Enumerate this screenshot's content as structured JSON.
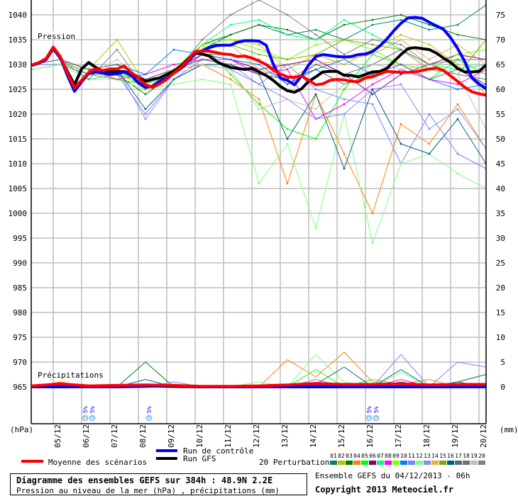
{
  "chart_data": {
    "type": "line",
    "title": "Diagramme des ensembles GEFS sur 384h : 48.9N 2.2E",
    "subtitle": "Pression au niveau de la mer (hPa) , précipitations (mm)",
    "run_info": "Ensemble GEFS du 04/12/2013 - 06h",
    "copyright": "Copyright 2013 Meteociel.fr",
    "left_axis": {
      "unit_label": "(hPa)",
      "range": [
        965,
        1040
      ],
      "ticks": [
        "1040",
        "1035",
        "1030",
        "1025",
        "1020",
        "1015",
        "1010",
        "1005",
        "1000",
        "995",
        "990",
        "985",
        "980",
        "975",
        "970",
        "965"
      ]
    },
    "right_axis": {
      "unit_label": "(mm)",
      "range": [
        0,
        75
      ],
      "ticks": [
        "75",
        "70",
        "65",
        "60",
        "55",
        "50",
        "45",
        "40",
        "35",
        "30",
        "25",
        "20",
        "15",
        "10",
        "5",
        "0"
      ]
    },
    "x_ticks": [
      "05/12",
      "06/12",
      "07/12",
      "08/12",
      "09/12",
      "10/12",
      "11/12",
      "12/12",
      "13/12",
      "14/12",
      "15/12",
      "16/12",
      "17/12",
      "18/12",
      "19/12",
      "20/12"
    ],
    "x_start": "2013-12-04T06:00",
    "grid": true,
    "panel_labels": {
      "pressure": "Pression",
      "precip": "Précipitations"
    },
    "legend": {
      "mean": "Moyenne des scénarios",
      "control": "Run de contrôle",
      "gfs": "Run GFS",
      "perturbations": "20 Perturbations"
    },
    "main_series": [
      {
        "key": "gfs",
        "name": "Run GFS",
        "color": "#000000",
        "step_hours": 6,
        "pressure": [
          1029.8,
          1030.3,
          1031,
          1033.2,
          1031.3,
          1028.6,
          1025.9,
          1029.1,
          1030.4,
          1029.4,
          1028.6,
          1028.6,
          1028.5,
          1028.6,
          1028,
          1027.3,
          1026.6,
          1027,
          1027.3,
          1028,
          1028.6,
          1029.7,
          1031.1,
          1032.3,
          1032.1,
          1031.7,
          1030.6,
          1029.9,
          1029.4,
          1029.2,
          1029,
          1029.2,
          1028.5,
          1027.8,
          1026.8,
          1025.6,
          1024.7,
          1024.4,
          1025.1,
          1026.6,
          1027.5,
          1028.5,
          1028.6,
          1028.6,
          1027.8,
          1027.8,
          1027.5,
          1028,
          1028.5,
          1028.6,
          1029.2,
          1030.6,
          1032,
          1033.2,
          1033.4,
          1033.2,
          1033,
          1032.3,
          1031.3,
          1030.4,
          1029.2,
          1028.5,
          1028.5,
          1028.6,
          1029.9
        ],
        "precip_step_hours": 24,
        "precip": [
          0.1,
          0.3,
          0,
          0.1,
          0.2,
          0.1,
          0,
          0,
          0,
          0,
          0,
          0,
          0,
          0,
          0,
          0,
          0
        ]
      },
      {
        "key": "control",
        "name": "Run de contrôle",
        "color": "#0000ff",
        "step_hours": 6,
        "pressure": [
          1029.8,
          1030.3,
          1031,
          1033.3,
          1031.4,
          1027.8,
          1024.6,
          1026.5,
          1028.2,
          1028.5,
          1028.3,
          1028,
          1028.1,
          1028.5,
          1027.8,
          1026.3,
          1025.4,
          1025.6,
          1026.6,
          1027.3,
          1028.3,
          1029.2,
          1030.6,
          1032.2,
          1032.7,
          1033.4,
          1033.9,
          1033.9,
          1033.9,
          1034.5,
          1034.8,
          1034.8,
          1034.7,
          1033.9,
          1030.1,
          1027.3,
          1026.8,
          1025.9,
          1027.7,
          1029.9,
          1031.6,
          1032,
          1031.8,
          1031.6,
          1031.5,
          1031.6,
          1032,
          1032.1,
          1032.6,
          1033.7,
          1035.1,
          1036.8,
          1038.3,
          1039.4,
          1039.5,
          1039.3,
          1038.5,
          1037.8,
          1037.1,
          1035.4,
          1033.2,
          1030.6,
          1027.3,
          1026.1,
          1025.1
        ],
        "precip_step_hours": 24,
        "precip": [
          0,
          0,
          0,
          0,
          0.1,
          0.3,
          0,
          0,
          0,
          0,
          0.1,
          0,
          0,
          0,
          0,
          0,
          0
        ]
      },
      {
        "key": "mean",
        "name": "Moyenne des scénarios",
        "color": "#ff0000",
        "step_hours": 6,
        "pressure": [
          1029.9,
          1030.4,
          1031.2,
          1033.5,
          1031.6,
          1028.3,
          1025.3,
          1026.8,
          1028.4,
          1029.1,
          1028.8,
          1029.1,
          1029.1,
          1029.7,
          1028.3,
          1027.3,
          1025.9,
          1025.4,
          1026.1,
          1027,
          1028.3,
          1029.4,
          1030.9,
          1032.6,
          1032.7,
          1032.7,
          1032.4,
          1032.1,
          1032,
          1031.6,
          1031.7,
          1031.3,
          1030.7,
          1030,
          1029,
          1028.1,
          1027.5,
          1027.4,
          1027.7,
          1026.8,
          1025.9,
          1026.1,
          1026.8,
          1027,
          1026.9,
          1026.6,
          1026.5,
          1027.3,
          1027.5,
          1028.1,
          1028.6,
          1028.5,
          1028.4,
          1028.4,
          1028.5,
          1028.8,
          1029.1,
          1029.3,
          1028.8,
          1027.7,
          1026.6,
          1025.4,
          1024.5,
          1024.1,
          1023.8
        ],
        "precip_step_hours": 24,
        "precip": [
          0.2,
          0.6,
          0.2,
          0.3,
          0.4,
          0.3,
          0.1,
          0.1,
          0.2,
          0.4,
          0.7,
          0.5,
          0.5,
          0.6,
          0.4,
          0.5,
          0.5
        ]
      }
    ],
    "perturbation_step_hours": 24,
    "perturbations": [
      {
        "name": "01",
        "color": "#008080",
        "pressure": [
          1030,
          1031,
          1028,
          1029,
          1026,
          1029,
          1033,
          1036,
          1038,
          1036,
          1037,
          1035,
          1038,
          1039,
          1037,
          1038,
          1042
        ],
        "precip": [
          0,
          0,
          0,
          0,
          0,
          0,
          0,
          0,
          0,
          0,
          0,
          0,
          0,
          0,
          0,
          0,
          0
        ]
      },
      {
        "name": "02",
        "color": "#c0c000",
        "pressure": [
          1030,
          1030,
          1029,
          1035,
          1026,
          1028,
          1034,
          1035,
          1034,
          1029,
          1032,
          1030,
          1033,
          1036,
          1034,
          1030,
          1024
        ],
        "precip": [
          0,
          0,
          0,
          0,
          0,
          0,
          0,
          0,
          0,
          0,
          0,
          0,
          0,
          0,
          0,
          0,
          0
        ]
      },
      {
        "name": "03",
        "color": "#008000",
        "pressure": [
          1030,
          1031,
          1029,
          1028,
          1024,
          1028,
          1034,
          1036,
          1038,
          1037,
          1035,
          1038,
          1039,
          1040,
          1038,
          1036,
          1035
        ],
        "precip": [
          0,
          0,
          0,
          0,
          5,
          0,
          0,
          0,
          0,
          0,
          0,
          0,
          0,
          1,
          0,
          1,
          0
        ]
      },
      {
        "name": "04",
        "color": "#ff8000",
        "pressure": [
          1030,
          1031,
          1028,
          1028,
          1027,
          1029,
          1030,
          1027,
          1023,
          1006,
          1024,
          1012,
          1000,
          1018,
          1014,
          1022,
          1013
        ],
        "precip": [
          0,
          1,
          0,
          0,
          0,
          0,
          0,
          0,
          0,
          5.5,
          2,
          7,
          1,
          0.5,
          1.5,
          0,
          0
        ]
      },
      {
        "name": "05",
        "color": "#00ff00",
        "pressure": [
          1029,
          1030,
          1028,
          1029,
          1025,
          1029,
          1034,
          1028,
          1022,
          1017,
          1015,
          1025,
          1032,
          1030,
          1027,
          1031,
          1028
        ],
        "precip": [
          0,
          0.5,
          0,
          0,
          0,
          0,
          0,
          0,
          0,
          0,
          3.5,
          0,
          1.5,
          0.5,
          0.5,
          0,
          0
        ]
      },
      {
        "name": "06",
        "color": "#800080",
        "pressure": [
          1030,
          1031,
          1029,
          1029,
          1027,
          1029,
          1032,
          1031,
          1029,
          1030,
          1031,
          1028,
          1024,
          1028,
          1030,
          1032,
          1031
        ],
        "precip": [
          0,
          0,
          0,
          0,
          0,
          0,
          0,
          0,
          0,
          0,
          0,
          0,
          0,
          0,
          0,
          0,
          0
        ]
      },
      {
        "name": "07",
        "color": "#00ff80",
        "pressure": [
          1030,
          1031,
          1027,
          1028,
          1026,
          1029,
          1034,
          1038,
          1039,
          1036,
          1035,
          1039,
          1036,
          1033,
          1030,
          1029,
          1030
        ],
        "precip": [
          0,
          0,
          0,
          0,
          0,
          0,
          0,
          0,
          0,
          0,
          0,
          0,
          0,
          0,
          0,
          0,
          0
        ]
      },
      {
        "name": "08",
        "color": "#ff00ff",
        "pressure": [
          1030,
          1031,
          1029,
          1027,
          1028,
          1030,
          1031,
          1031,
          1028,
          1029,
          1019,
          1022,
          1026,
          1029,
          1027,
          1026,
          1029
        ],
        "precip": [
          0,
          0,
          0,
          0,
          0,
          0,
          0,
          0,
          0,
          0,
          0,
          0,
          0,
          1.5,
          0,
          0,
          0
        ]
      },
      {
        "name": "09",
        "color": "#80ff00",
        "pressure": [
          1030,
          1030,
          1029,
          1028,
          1026,
          1029,
          1034,
          1035,
          1033,
          1031,
          1034,
          1035,
          1033,
          1030,
          1029,
          1032,
          1033
        ],
        "precip": [
          0,
          0,
          0,
          0,
          0,
          0,
          0,
          0,
          0,
          0,
          0,
          0,
          0,
          0,
          0,
          0,
          0
        ]
      },
      {
        "name": "10",
        "color": "#0080ff",
        "pressure": [
          1030,
          1031,
          1029,
          1030,
          1028,
          1033,
          1032,
          1031,
          1030,
          1026,
          1029,
          1031,
          1028,
          1030,
          1027,
          1025,
          1026
        ],
        "precip": [
          0,
          0,
          0,
          0,
          0,
          0.5,
          0,
          0,
          0,
          0,
          0,
          0,
          0,
          0,
          0,
          0,
          0
        ]
      },
      {
        "name": "11",
        "color": "#8080ff",
        "pressure": [
          1030,
          1030,
          1028,
          1028,
          1020,
          1027,
          1031,
          1030,
          1026,
          1030,
          1025,
          1023,
          1022,
          1010,
          1020,
          1012,
          1009
        ],
        "precip": [
          0,
          0,
          0,
          0,
          0,
          1,
          0,
          0,
          0,
          0,
          1.5,
          0,
          0,
          6.5,
          0,
          5,
          4
        ]
      },
      {
        "name": "12",
        "color": "#80ff80",
        "pressure": [
          1029,
          1030,
          1027,
          1027,
          1025,
          1026,
          1027,
          1026,
          1006,
          1014,
          997,
          1020,
          994,
          1010,
          1012,
          1008,
          1005
        ],
        "precip": [
          0,
          0,
          0,
          0,
          0,
          0,
          0,
          0,
          1,
          0,
          6.5,
          1,
          0,
          3,
          0,
          0,
          0
        ]
      },
      {
        "name": "13",
        "color": "#8888ff",
        "pressure": [
          1030,
          1031,
          1028,
          1029,
          1019,
          1027,
          1030,
          1029,
          1026,
          1023,
          1019,
          1020,
          1025,
          1026,
          1017,
          1021,
          1013
        ],
        "precip": [
          0,
          0,
          0,
          0,
          0,
          0,
          0,
          0,
          0,
          0,
          0,
          0,
          0,
          0,
          0,
          0,
          0
        ]
      },
      {
        "name": "14",
        "color": "#e0b040",
        "pressure": [
          1030,
          1031,
          1029,
          1028,
          1027,
          1029,
          1033,
          1034,
          1029,
          1027,
          1030,
          1031,
          1032,
          1035,
          1031,
          1034,
          1030
        ],
        "precip": [
          0,
          0,
          0,
          0,
          0,
          0,
          0,
          0,
          0,
          0,
          0,
          0,
          0,
          0,
          0,
          0,
          0
        ]
      },
      {
        "name": "15",
        "color": "#80a800",
        "pressure": [
          1030,
          1031,
          1028,
          1027,
          1026,
          1028,
          1033,
          1034,
          1032,
          1031,
          1032,
          1035,
          1034,
          1033,
          1029,
          1028,
          1035
        ],
        "precip": [
          0,
          0,
          0,
          0,
          0,
          0,
          0,
          0,
          0,
          0,
          0,
          0,
          0,
          0,
          0,
          0,
          0
        ]
      },
      {
        "name": "16",
        "color": "#006080",
        "pressure": [
          1030,
          1031,
          1028,
          1029,
          1021,
          1027,
          1030,
          1030,
          1028,
          1015,
          1024,
          1009,
          1025,
          1014,
          1012,
          1019,
          1010
        ],
        "precip": [
          0,
          0,
          0,
          0,
          1.5,
          0,
          0,
          0,
          0,
          0,
          0.5,
          4,
          0,
          3.5,
          0,
          1,
          2.5
        ]
      },
      {
        "name": "17",
        "color": "#507070",
        "pressure": [
          1030,
          1031,
          1029,
          1030,
          1027,
          1029,
          1031,
          1030,
          1028,
          1027,
          1029,
          1026,
          1028,
          1030,
          1027,
          1029,
          1026
        ],
        "precip": [
          0,
          0,
          0,
          0,
          0,
          0,
          0,
          0,
          0,
          0,
          0,
          0,
          0,
          0,
          0,
          0,
          0
        ]
      },
      {
        "name": "18",
        "color": "#806870",
        "pressure": [
          1030,
          1031,
          1029,
          1029,
          1026,
          1028,
          1032,
          1032,
          1031,
          1026,
          1030,
          1028,
          1030,
          1033,
          1030,
          1028,
          1027
        ],
        "precip": [
          0,
          0,
          0,
          0,
          0,
          0,
          0,
          0,
          0,
          0,
          0,
          0,
          0,
          0,
          0,
          0,
          0
        ]
      },
      {
        "name": "19",
        "color": "#c0c0c0",
        "pressure": [
          1030,
          1031,
          1028,
          1031,
          1026,
          1028,
          1030,
          1029,
          1021,
          1023,
          1021,
          1026,
          1030,
          1029,
          1030,
          1028,
          1017
        ],
        "precip": [
          0,
          0,
          0,
          0,
          0,
          0,
          0,
          0,
          0,
          0,
          0,
          0,
          0,
          0,
          0,
          0,
          0
        ]
      },
      {
        "name": "20",
        "color": "#808080",
        "pressure": [
          1030,
          1031,
          1027,
          1033,
          1025,
          1028,
          1035,
          1040,
          1043,
          1040,
          1036,
          1032,
          1035,
          1034,
          1030,
          1031,
          1031
        ],
        "precip": [
          0,
          0.5,
          0,
          0,
          0,
          0,
          0,
          0,
          0,
          0,
          0,
          0,
          0,
          0,
          0,
          0,
          0
        ]
      }
    ],
    "snow_events": [
      {
        "date": "06/12",
        "prob": "5%",
        "hour_offset": 45
      },
      {
        "date": "06/12",
        "prob": "5%",
        "hour_offset": 51
      },
      {
        "date": "08/12",
        "prob": "5%",
        "hour_offset": 99
      },
      {
        "date": "16/12",
        "prob": "5%",
        "hour_offset": 285
      },
      {
        "date": "16/12",
        "prob": "5%",
        "hour_offset": 291
      }
    ]
  }
}
